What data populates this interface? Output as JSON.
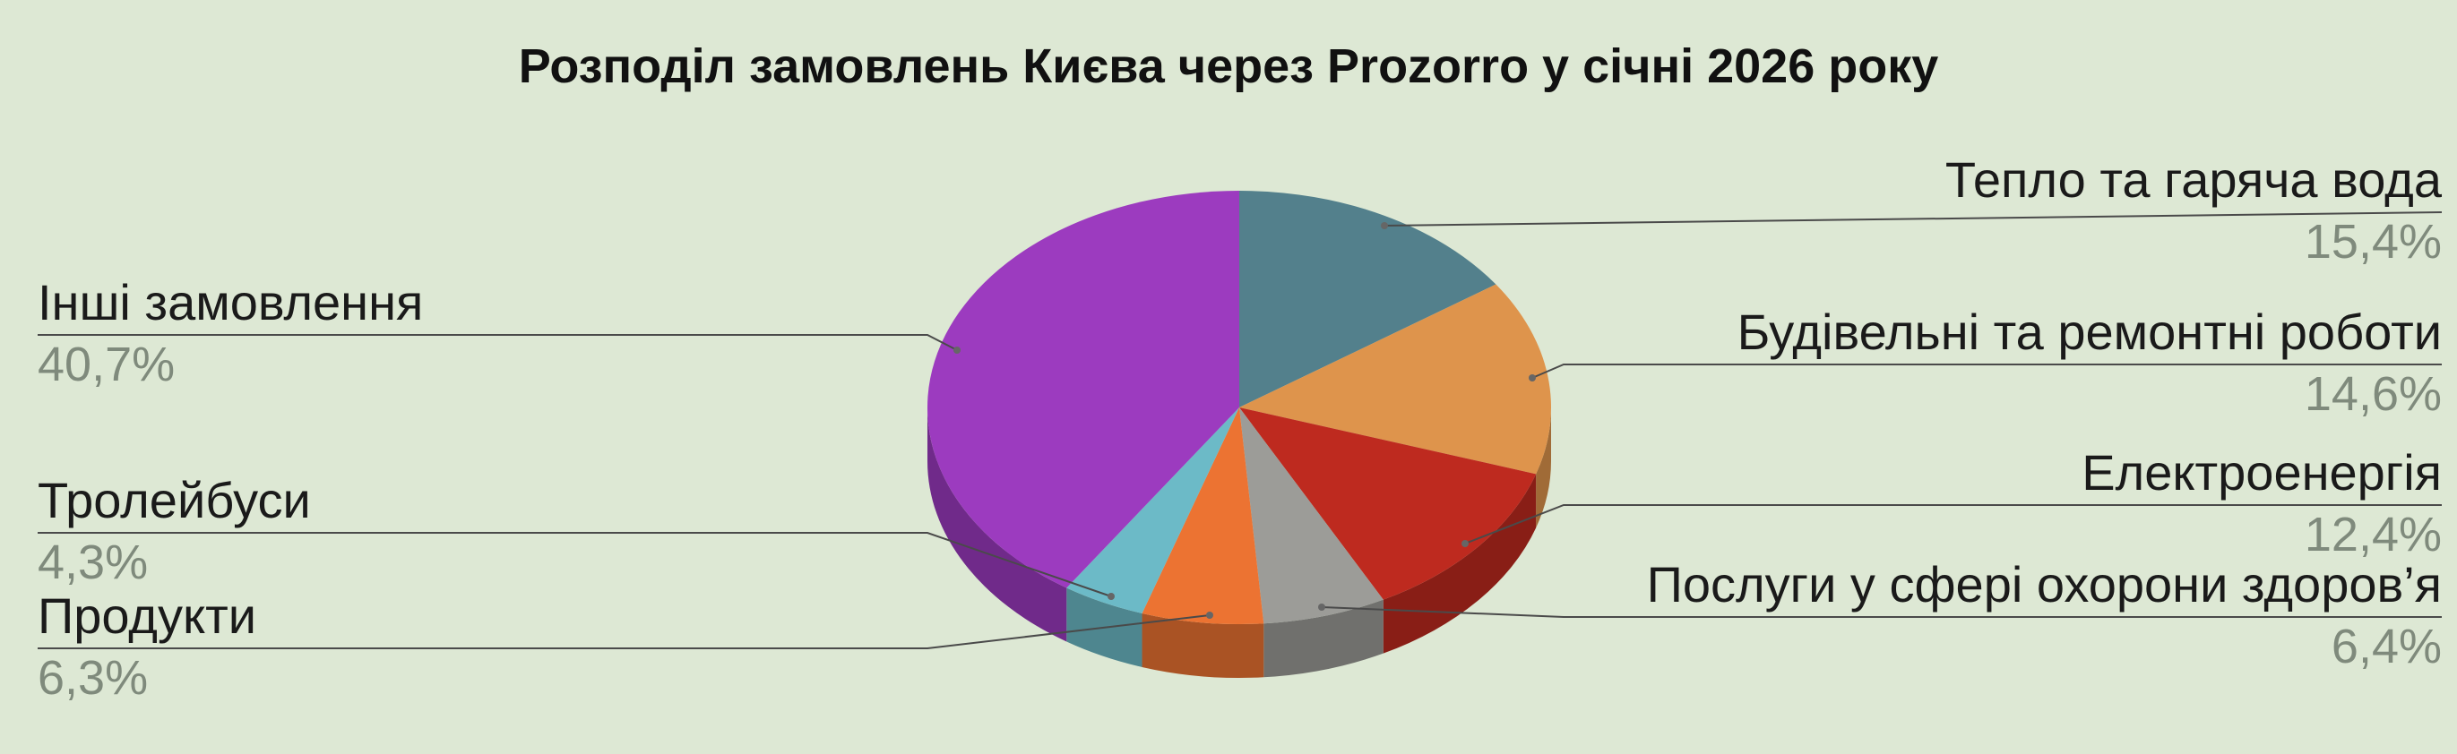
{
  "chart_data": {
    "type": "pie",
    "style": "3d",
    "title": "Розподіл замовлень Києва через Prozorro у січні 2026 року",
    "slices": [
      {
        "label": "Тепло та гаряча вода",
        "value": 15.4,
        "display": "15,4%",
        "color": "#53808c"
      },
      {
        "label": "Будівельні та ремонтні роботи",
        "value": 14.6,
        "display": "14,6%",
        "color": "#de944c"
      },
      {
        "label": "Електроенергія",
        "value": 12.4,
        "display": "12,4%",
        "color": "#be2a1f"
      },
      {
        "label": "Послуги у сфері охорони здоров’я",
        "value": 6.4,
        "display": "6,4%",
        "color": "#9c9c98"
      },
      {
        "label": "Продукти",
        "value": 6.3,
        "display": "6,3%",
        "color": "#ec7332"
      },
      {
        "label": "Тролейбуси",
        "value": 4.3,
        "display": "4,3%",
        "color": "#6cbac7"
      },
      {
        "label": "Інші замовлення",
        "value": 40.7,
        "display": "40,7%",
        "color": "#9c3bbf"
      }
    ]
  }
}
